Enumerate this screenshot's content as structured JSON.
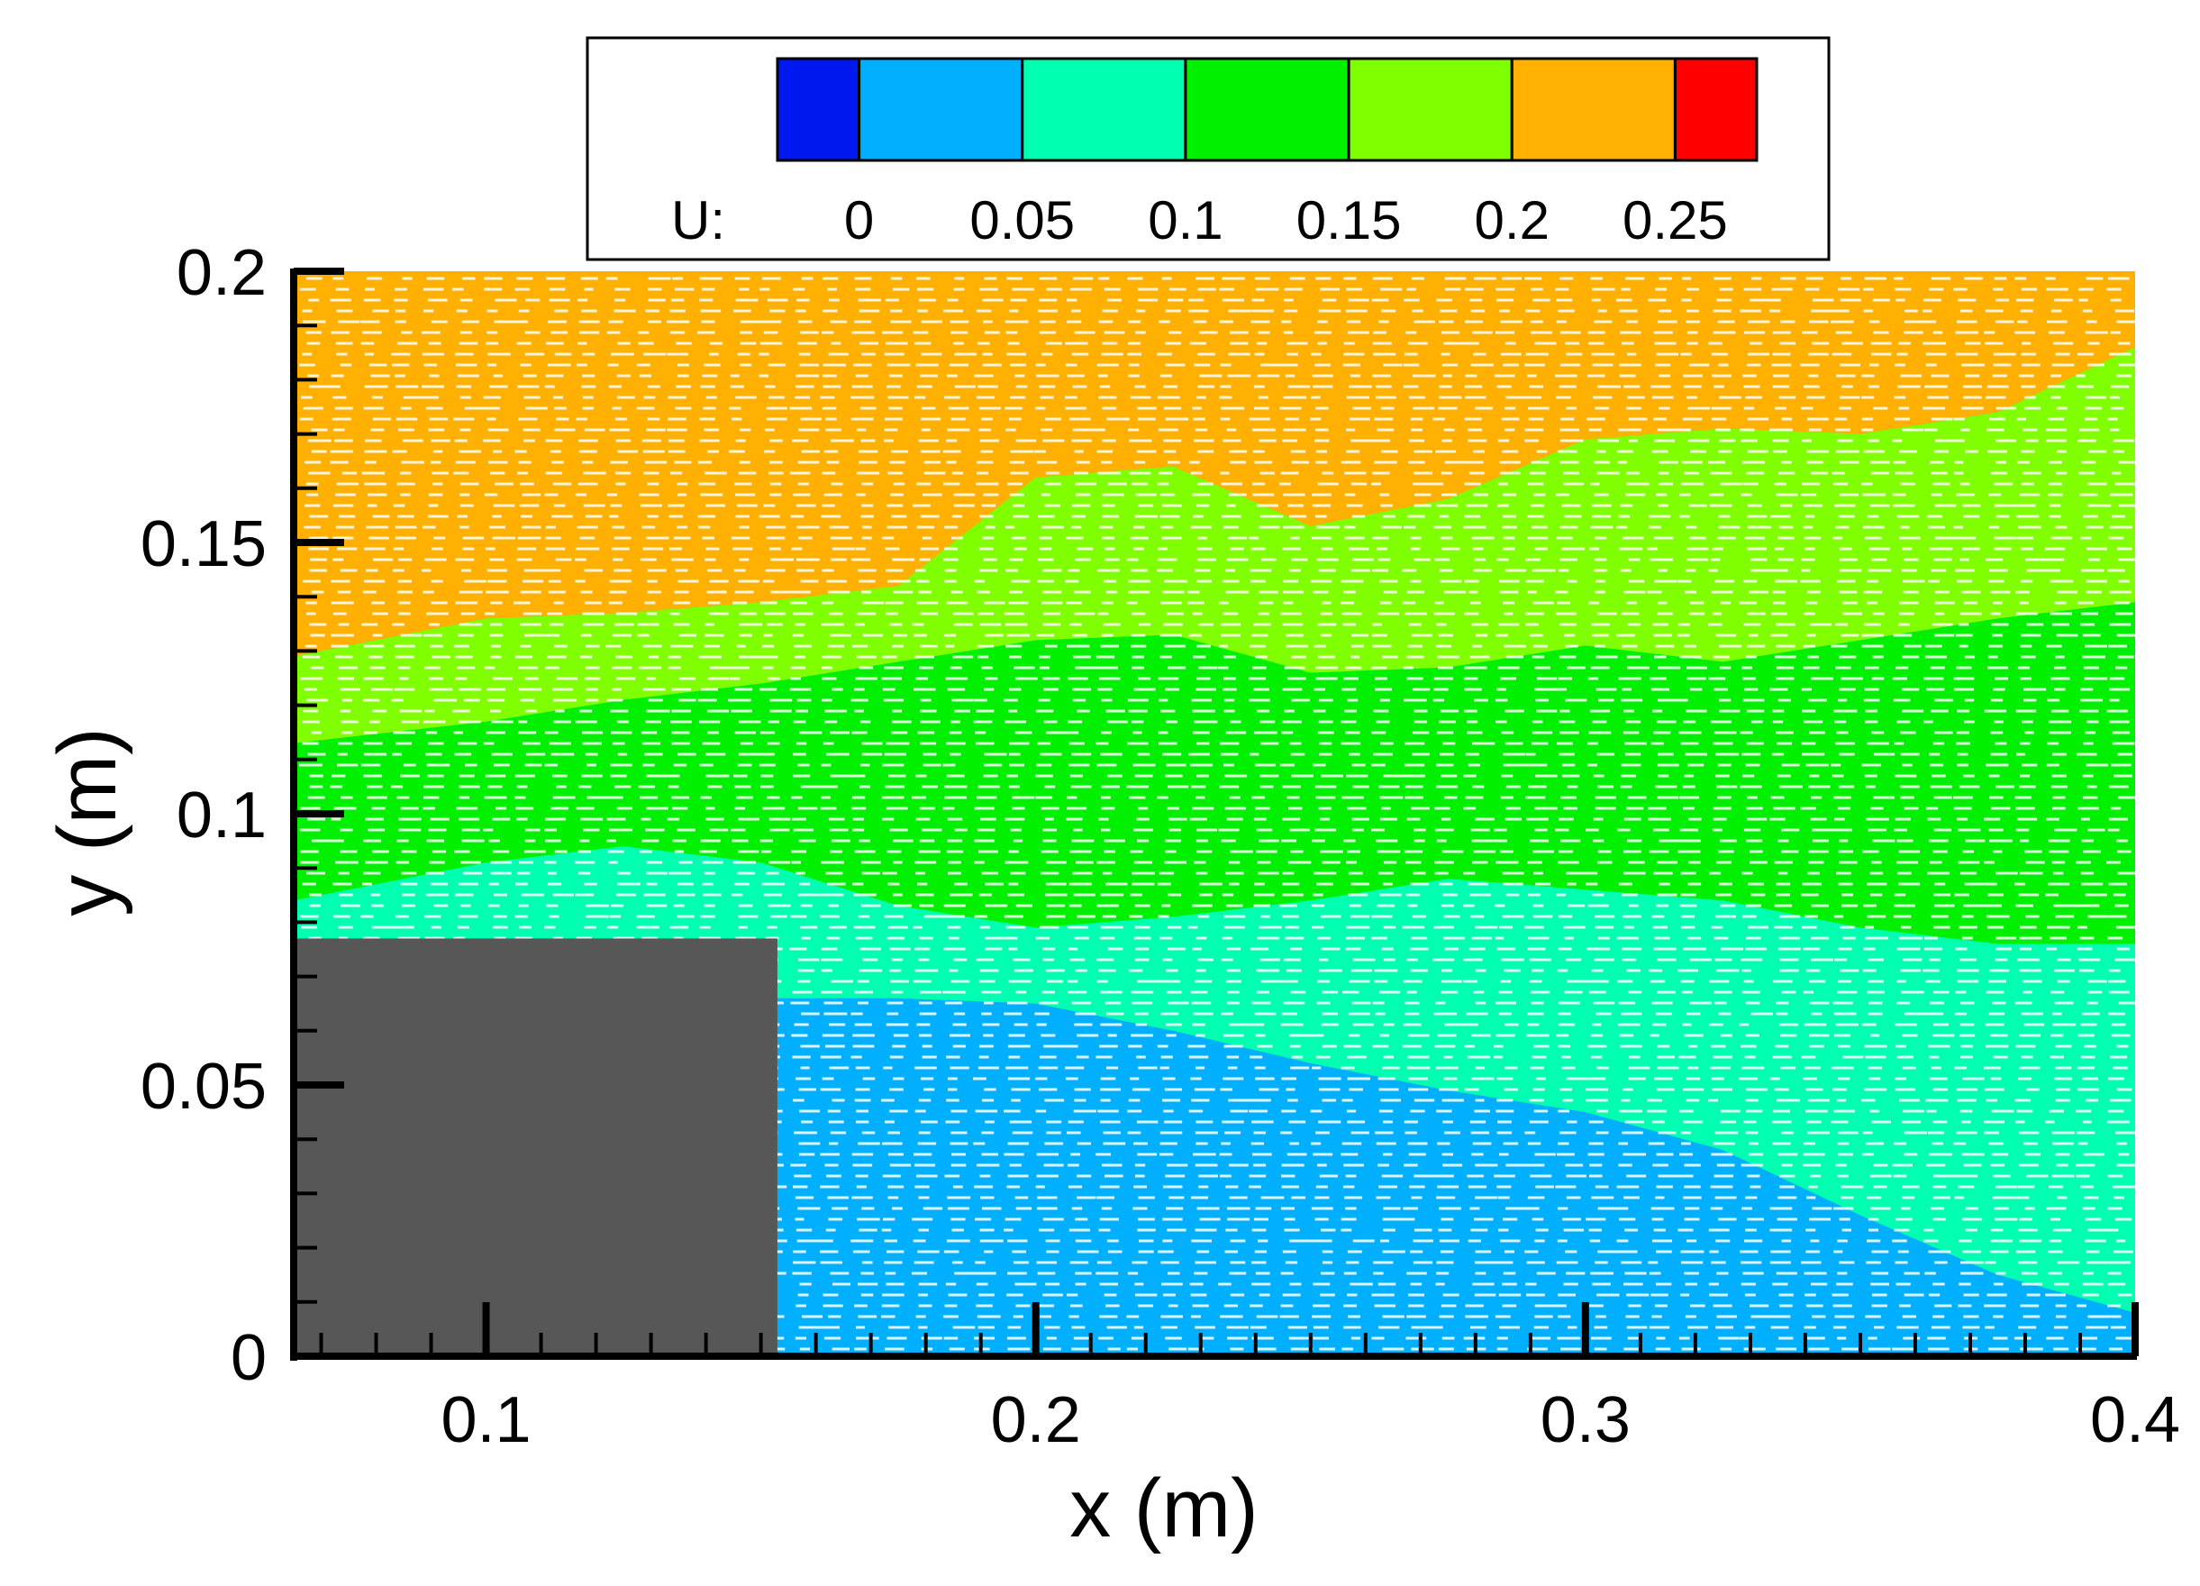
{
  "chart_data": {
    "type": "heatmap",
    "variable_label": "U:",
    "xlabel": "x (m)",
    "ylabel": "y (m)",
    "xlim": [
      0.065,
      0.4
    ],
    "ylim": [
      0,
      0.2
    ],
    "x_ticks": [
      {
        "value": 0.1,
        "label": "0.1"
      },
      {
        "value": 0.2,
        "label": "0.2"
      },
      {
        "value": 0.3,
        "label": "0.3"
      },
      {
        "value": 0.4,
        "label": "0.4"
      }
    ],
    "y_ticks": [
      {
        "value": 0,
        "label": "0"
      },
      {
        "value": 0.05,
        "label": "0.05"
      },
      {
        "value": 0.1,
        "label": "0.1"
      },
      {
        "value": 0.15,
        "label": "0.15"
      },
      {
        "value": 0.2,
        "label": "0.2"
      }
    ],
    "colorbar": {
      "levels": [
        0,
        0.05,
        0.1,
        0.15,
        0.2,
        0.25
      ],
      "level_labels": [
        "0",
        "0.05",
        "0.1",
        "0.15",
        "0.2",
        "0.25"
      ],
      "colors": [
        "#0018f0",
        "#00b0ff",
        "#00ffb0",
        "#00f000",
        "#80ff00",
        "#ffb000",
        "#ff0000"
      ]
    },
    "obstacle": {
      "x": [
        0.065,
        0.153
      ],
      "y": [
        0,
        0.077
      ],
      "color": "#575757"
    },
    "contour_bands": [
      {
        "range": [
          0.05,
          0.1
        ],
        "boundary_y": [
          [
            0.065,
            0.084
          ],
          [
            0.1,
            0.091
          ],
          [
            0.125,
            0.094
          ],
          [
            0.15,
            0.091
          ],
          [
            0.175,
            0.083
          ],
          [
            0.2,
            0.079
          ],
          [
            0.225,
            0.081
          ],
          [
            0.25,
            0.084
          ],
          [
            0.275,
            0.088
          ],
          [
            0.3,
            0.086
          ],
          [
            0.325,
            0.084
          ],
          [
            0.35,
            0.079
          ],
          [
            0.375,
            0.076
          ],
          [
            0.4,
            0.076
          ]
        ]
      },
      {
        "range": [
          0.1,
          0.15
        ],
        "boundary_y": [
          [
            0.065,
            0.113
          ],
          [
            0.1,
            0.117
          ],
          [
            0.125,
            0.121
          ],
          [
            0.15,
            0.124
          ],
          [
            0.175,
            0.128
          ],
          [
            0.2,
            0.132
          ],
          [
            0.225,
            0.133
          ],
          [
            0.25,
            0.126
          ],
          [
            0.275,
            0.127
          ],
          [
            0.3,
            0.131
          ],
          [
            0.325,
            0.128
          ],
          [
            0.35,
            0.132
          ],
          [
            0.375,
            0.136
          ],
          [
            0.4,
            0.139
          ]
        ]
      },
      {
        "range": [
          0.15,
          0.2
        ],
        "boundary_y": [
          [
            0.065,
            0.129
          ],
          [
            0.1,
            0.136
          ],
          [
            0.125,
            0.137
          ],
          [
            0.15,
            0.139
          ],
          [
            0.175,
            0.142
          ],
          [
            0.2,
            0.162
          ],
          [
            0.225,
            0.164
          ],
          [
            0.25,
            0.153
          ],
          [
            0.275,
            0.158
          ],
          [
            0.3,
            0.169
          ],
          [
            0.325,
            0.171
          ],
          [
            0.35,
            0.17
          ],
          [
            0.375,
            0.174
          ],
          [
            0.4,
            0.186
          ]
        ]
      }
    ],
    "low_speed_region": {
      "range": [
        0,
        0.05
      ],
      "boundary_y": [
        [
          0.153,
          0.066
        ],
        [
          0.175,
          0.066
        ],
        [
          0.2,
          0.065
        ],
        [
          0.225,
          0.06
        ],
        [
          0.25,
          0.054
        ],
        [
          0.275,
          0.049
        ],
        [
          0.3,
          0.045
        ],
        [
          0.325,
          0.038
        ],
        [
          0.35,
          0.026
        ],
        [
          0.375,
          0.015
        ],
        [
          0.4,
          0.008
        ]
      ]
    }
  }
}
